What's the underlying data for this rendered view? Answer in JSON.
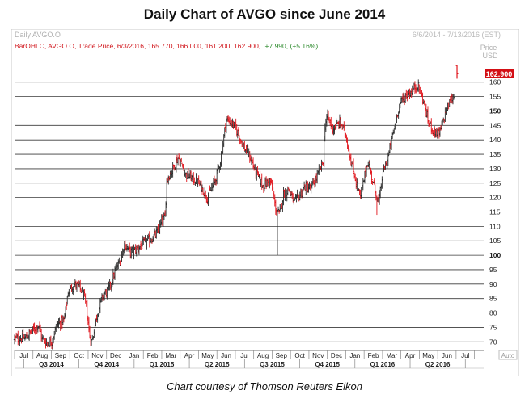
{
  "title": "Daily Chart of AVGO since June 2014",
  "caption": "Chart courtesy of Thomson Reuters Eikon",
  "chart_data": {
    "type": "ohlc",
    "panel_title": "Daily AVGO.O",
    "date_range": "6/6/2014 - 7/13/2016 (EST)",
    "legend_label": "BarOHLC, AVGO.O, Trade Price, 6/3/2016, 165.770, 166.000, 161.200, 162.900,",
    "legend_change": "+7.990, (+5.16%)",
    "last_price_label": "162.900",
    "last_price": 162.9,
    "ylabel": "Price",
    "yunit": "USD",
    "ylim": [
      67,
      170
    ],
    "yticks": [
      70,
      75,
      80,
      85,
      90,
      95,
      100,
      105,
      110,
      115,
      120,
      125,
      130,
      135,
      140,
      145,
      150,
      155,
      160
    ],
    "bold_yticks": [
      100,
      150
    ],
    "auto_label": "Auto",
    "xlim": [
      0,
      25.5
    ],
    "month_ticks": [
      {
        "x": 0.5,
        "label": "Jul"
      },
      {
        "x": 1.5,
        "label": "Aug"
      },
      {
        "x": 2.5,
        "label": "Sep"
      },
      {
        "x": 3.5,
        "label": "Oct"
      },
      {
        "x": 4.5,
        "label": "Nov"
      },
      {
        "x": 5.5,
        "label": "Dec"
      },
      {
        "x": 6.5,
        "label": "Jan"
      },
      {
        "x": 7.5,
        "label": "Feb"
      },
      {
        "x": 8.5,
        "label": "Mar"
      },
      {
        "x": 9.5,
        "label": "Apr"
      },
      {
        "x": 10.5,
        "label": "May"
      },
      {
        "x": 11.5,
        "label": "Jun"
      },
      {
        "x": 12.5,
        "label": "Jul"
      },
      {
        "x": 13.5,
        "label": "Aug"
      },
      {
        "x": 14.5,
        "label": "Sep"
      },
      {
        "x": 15.5,
        "label": "Oct"
      },
      {
        "x": 16.5,
        "label": "Nov"
      },
      {
        "x": 17.5,
        "label": "Dec"
      },
      {
        "x": 18.5,
        "label": "Jan"
      },
      {
        "x": 19.5,
        "label": "Feb"
      },
      {
        "x": 20.5,
        "label": "Mar"
      },
      {
        "x": 21.5,
        "label": "Apr"
      },
      {
        "x": 22.5,
        "label": "May"
      },
      {
        "x": 23.5,
        "label": "Jun"
      },
      {
        "x": 24.5,
        "label": "Jul"
      }
    ],
    "quarter_ticks": [
      {
        "x": 2,
        "label": "Q3 2014"
      },
      {
        "x": 5,
        "label": "Q4 2014"
      },
      {
        "x": 8,
        "label": "Q1 2015"
      },
      {
        "x": 11,
        "label": "Q2 2015"
      },
      {
        "x": 14,
        "label": "Q3 2015"
      },
      {
        "x": 17,
        "label": "Q4 2015"
      },
      {
        "x": 20,
        "label": "Q1 2016"
      },
      {
        "x": 23,
        "label": "Q2 2016"
      }
    ],
    "price_path": [
      [
        0.0,
        71
      ],
      [
        0.6,
        71.5
      ],
      [
        1.0,
        74
      ],
      [
        1.3,
        76
      ],
      [
        1.5,
        71
      ],
      [
        1.8,
        69.5
      ],
      [
        2.0,
        70
      ],
      [
        2.3,
        76
      ],
      [
        2.7,
        77.5
      ],
      [
        2.9,
        87
      ],
      [
        3.2,
        90
      ],
      [
        3.5,
        89
      ],
      [
        3.7,
        87
      ],
      [
        3.9,
        82
      ],
      [
        4.1,
        71
      ],
      [
        4.2,
        70
      ],
      [
        4.5,
        80
      ],
      [
        4.8,
        86
      ],
      [
        5.1,
        88
      ],
      [
        5.5,
        95
      ],
      [
        5.8,
        99
      ],
      [
        5.95,
        104
      ],
      [
        6.3,
        101
      ],
      [
        6.6,
        102
      ],
      [
        7.0,
        104
      ],
      [
        7.5,
        106
      ],
      [
        7.8,
        108
      ],
      [
        8.0,
        112
      ],
      [
        8.2,
        113
      ],
      [
        8.25,
        126
      ],
      [
        8.6,
        130
      ],
      [
        8.9,
        134
      ],
      [
        9.3,
        128
      ],
      [
        9.6,
        127
      ],
      [
        10.0,
        125
      ],
      [
        10.5,
        120
      ],
      [
        10.9,
        126
      ],
      [
        11.2,
        133
      ],
      [
        11.5,
        147
      ],
      [
        11.8,
        146
      ],
      [
        12.1,
        143
      ],
      [
        12.5,
        137
      ],
      [
        12.8,
        134
      ],
      [
        13.1,
        129
      ],
      [
        13.5,
        124
      ],
      [
        13.9,
        126
      ],
      [
        14.2,
        116
      ],
      [
        14.4,
        114
      ],
      [
        14.6,
        121
      ],
      [
        14.9,
        123
      ],
      [
        15.2,
        118
      ],
      [
        15.5,
        121
      ],
      [
        15.8,
        124
      ],
      [
        16.1,
        123
      ],
      [
        16.5,
        128
      ],
      [
        16.8,
        133
      ],
      [
        16.85,
        145
      ],
      [
        17.0,
        148
      ],
      [
        17.3,
        144
      ],
      [
        17.7,
        146
      ],
      [
        18.0,
        142
      ],
      [
        18.2,
        135
      ],
      [
        18.5,
        127
      ],
      [
        18.8,
        120
      ],
      [
        19.2,
        133
      ],
      [
        19.6,
        122
      ],
      [
        19.8,
        118
      ],
      [
        20.0,
        128
      ],
      [
        20.3,
        134
      ],
      [
        20.6,
        143
      ],
      [
        20.9,
        152
      ],
      [
        21.2,
        155
      ],
      [
        21.6,
        157
      ],
      [
        21.9,
        159
      ],
      [
        22.2,
        154
      ],
      [
        22.5,
        146
      ],
      [
        22.8,
        143
      ],
      [
        23.1,
        142
      ],
      [
        23.4,
        149
      ],
      [
        23.7,
        154
      ],
      [
        23.9,
        155
      ]
    ],
    "outlier_lows": [
      {
        "x": 14.3,
        "low": 100
      },
      {
        "x": 4.15,
        "low": 68.5
      },
      {
        "x": 19.7,
        "low": 114
      }
    ],
    "last_bar": {
      "x": 24.05,
      "open": 165.77,
      "high": 166.0,
      "low": 161.2,
      "close": 162.9
    },
    "colors": {
      "up": "#2a2a2a",
      "down": "#e0141b",
      "label_bg": "#d30f15",
      "grid": "#3a3a3a",
      "meta": "#b9b9b9"
    }
  }
}
